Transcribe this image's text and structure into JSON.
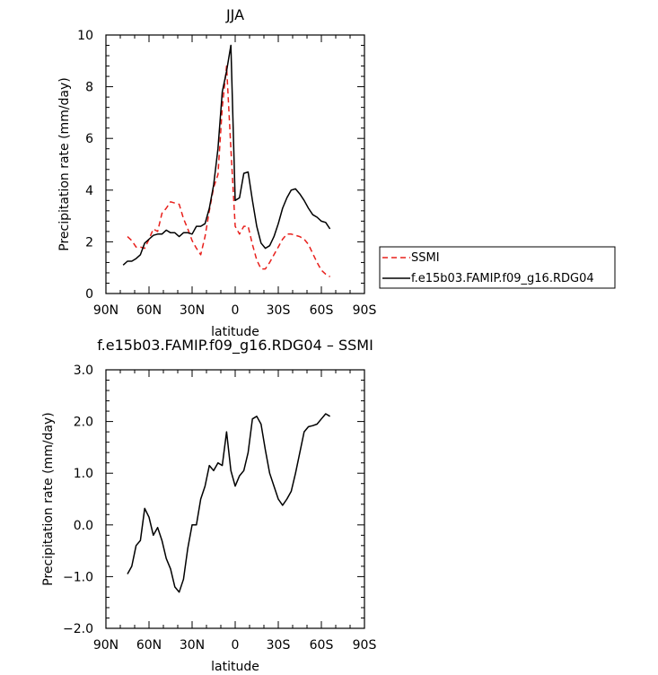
{
  "chart_data": [
    {
      "type": "line",
      "title": "JJA",
      "xlabel": "latitude",
      "ylabel": "Precipitation rate (mm/day)",
      "xlim": [
        90,
        -90
      ],
      "ylim": [
        0,
        10
      ],
      "x_ticks": [
        90,
        60,
        30,
        0,
        -30,
        -60,
        -90
      ],
      "x_tick_labels": [
        "90N",
        "60N",
        "30N",
        "0",
        "30S",
        "60S",
        "90S"
      ],
      "y_ticks": [
        0,
        2,
        4,
        6,
        8,
        10
      ],
      "y_tick_labels": [
        "0",
        "2",
        "4",
        "6",
        "8",
        "10"
      ],
      "legend": {
        "placement": "right"
      },
      "series": [
        {
          "name": "SSMI",
          "color": "#e8201c",
          "dash": "dashed",
          "x": [
            75,
            72,
            69,
            66,
            63,
            60,
            57,
            54,
            51,
            48,
            45,
            42,
            39,
            36,
            33,
            30,
            27,
            24,
            21,
            18,
            15,
            12,
            9,
            6,
            3,
            0,
            -3,
            -6,
            -9,
            -12,
            -15,
            -18,
            -21,
            -24,
            -27,
            -30,
            -33,
            -36,
            -39,
            -42,
            -45,
            -48,
            -51,
            -54,
            -57,
            -60,
            -63,
            -66
          ],
          "y": [
            2.2,
            2.05,
            1.8,
            1.8,
            1.75,
            2.1,
            2.5,
            2.4,
            3.1,
            3.3,
            3.55,
            3.5,
            3.45,
            2.9,
            2.5,
            2.05,
            1.75,
            1.5,
            2.2,
            3.2,
            4.1,
            4.6,
            7.2,
            8.8,
            5.6,
            2.6,
            2.3,
            2.6,
            2.6,
            1.9,
            1.3,
            0.95,
            0.95,
            1.2,
            1.5,
            1.8,
            2.1,
            2.3,
            2.3,
            2.25,
            2.2,
            2.1,
            1.9,
            1.55,
            1.2,
            0.9,
            0.75,
            0.65
          ]
        },
        {
          "name": "f.e15b03.FAMIP.f09_g16.RDG04",
          "color": "#000000",
          "dash": "solid",
          "x": [
            78,
            75,
            72,
            69,
            66,
            63,
            60,
            57,
            54,
            51,
            48,
            45,
            42,
            39,
            36,
            33,
            30,
            27,
            24,
            21,
            18,
            15,
            12,
            9,
            6,
            3,
            0,
            -3,
            -6,
            -9,
            -12,
            -15,
            -18,
            -21,
            -24,
            -27,
            -30,
            -33,
            -36,
            -39,
            -42,
            -45,
            -48,
            -51,
            -54,
            -57,
            -60,
            -63,
            -66
          ],
          "y": [
            1.1,
            1.25,
            1.25,
            1.35,
            1.5,
            1.95,
            2.1,
            2.25,
            2.3,
            2.3,
            2.45,
            2.35,
            2.35,
            2.2,
            2.35,
            2.35,
            2.3,
            2.6,
            2.6,
            2.7,
            3.3,
            4.2,
            5.6,
            7.8,
            8.6,
            9.6,
            3.6,
            3.7,
            4.65,
            4.7,
            3.6,
            2.6,
            1.95,
            1.75,
            1.85,
            2.2,
            2.7,
            3.3,
            3.7,
            4.0,
            4.05,
            3.85,
            3.6,
            3.3,
            3.05,
            2.95,
            2.8,
            2.75,
            2.5
          ]
        }
      ]
    },
    {
      "type": "line",
      "title": "f.e15b03.FAMIP.f09_g16.RDG04 – SSMI",
      "xlabel": "latitude",
      "ylabel": "Precipitation rate (mm/day)",
      "xlim": [
        90,
        -90
      ],
      "ylim": [
        -2.0,
        3.0
      ],
      "x_ticks": [
        90,
        60,
        30,
        0,
        -30,
        -60,
        -90
      ],
      "x_tick_labels": [
        "90N",
        "60N",
        "30N",
        "0",
        "30S",
        "60S",
        "90S"
      ],
      "y_ticks": [
        -2.0,
        -1.0,
        0.0,
        1.0,
        2.0,
        3.0
      ],
      "y_tick_labels": [
        "−2.0",
        "−1.0",
        "0.0",
        "1.0",
        "2.0",
        "3.0"
      ],
      "series": [
        {
          "color": "#000000",
          "dash": "solid",
          "x": [
            75,
            72,
            69,
            66,
            63,
            60,
            57,
            54,
            51,
            48,
            45,
            42,
            39,
            36,
            33,
            30,
            27,
            24,
            21,
            18,
            15,
            12,
            9,
            6,
            3,
            0,
            -3,
            -6,
            -9,
            -12,
            -15,
            -18,
            -21,
            -24,
            -27,
            -30,
            -33,
            -36,
            -39,
            -42,
            -45,
            -48,
            -51,
            -54,
            -57,
            -60,
            -63,
            -66
          ],
          "y": [
            -0.95,
            -0.8,
            -0.4,
            -0.3,
            0.32,
            0.15,
            -0.2,
            -0.05,
            -0.3,
            -0.65,
            -0.85,
            -1.2,
            -1.3,
            -1.05,
            -0.45,
            0.0,
            0.0,
            0.5,
            0.75,
            1.15,
            1.05,
            1.2,
            1.15,
            1.8,
            1.05,
            0.75,
            0.95,
            1.05,
            1.4,
            2.05,
            2.1,
            1.95,
            1.45,
            1.0,
            0.75,
            0.5,
            0.38,
            0.5,
            0.65,
            1.0,
            1.4,
            1.8,
            1.9,
            1.92,
            1.95,
            2.05,
            2.15,
            2.1
          ]
        }
      ]
    }
  ]
}
